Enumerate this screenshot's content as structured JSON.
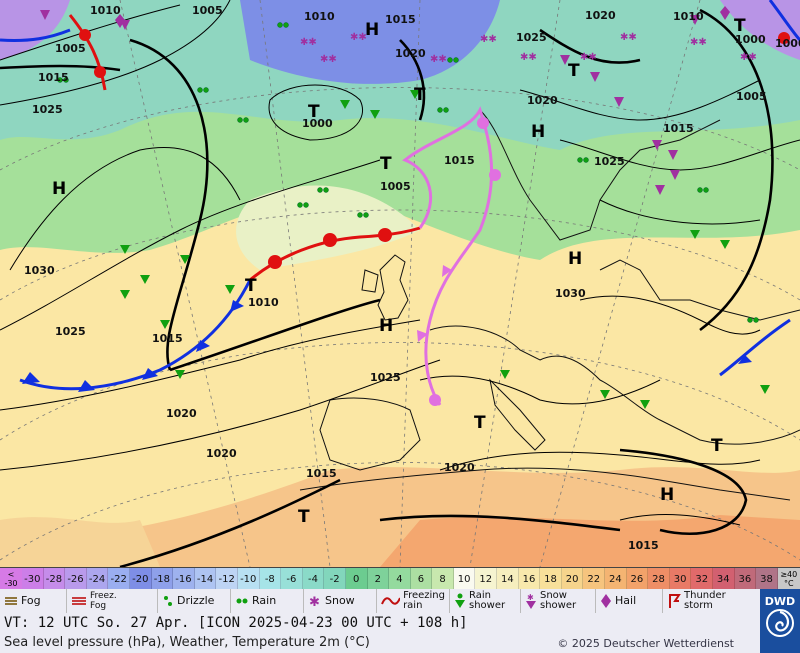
{
  "pressure_labels": [
    {
      "text": "1010"
    },
    {
      "text": "1005"
    },
    {
      "text": "1005"
    },
    {
      "text": "1015"
    },
    {
      "text": "1025"
    },
    {
      "text": "1010"
    },
    {
      "text": "1015"
    },
    {
      "text": "1020"
    },
    {
      "text": "1000"
    },
    {
      "text": "1005"
    },
    {
      "text": "1015"
    },
    {
      "text": "1030"
    },
    {
      "text": "1025"
    },
    {
      "text": "1015"
    },
    {
      "text": "1010"
    },
    {
      "text": "1025"
    },
    {
      "text": "1020"
    },
    {
      "text": "1020"
    },
    {
      "text": "1015"
    },
    {
      "text": "1020"
    },
    {
      "text": "1030"
    },
    {
      "text": "1025"
    },
    {
      "text": "1020"
    },
    {
      "text": "1010"
    },
    {
      "text": "1000"
    },
    {
      "text": "1020"
    },
    {
      "text": "1005"
    },
    {
      "text": "1015"
    },
    {
      "text": "1015"
    },
    {
      "text": "1025"
    },
    {
      "text": "1000"
    }
  ],
  "centers": [
    {
      "text": "H"
    },
    {
      "text": "T"
    },
    {
      "text": "T"
    },
    {
      "text": "H"
    },
    {
      "text": "T"
    },
    {
      "text": "H"
    },
    {
      "text": "H"
    },
    {
      "text": "T"
    },
    {
      "text": "T"
    },
    {
      "text": "T"
    },
    {
      "text": "H"
    },
    {
      "text": "T"
    },
    {
      "text": "H"
    },
    {
      "text": "T"
    },
    {
      "text": "T"
    }
  ],
  "colorbar": {
    "left_edge": [
      "<",
      "-30"
    ],
    "values": [
      "-30",
      "-28",
      "-26",
      "-24",
      "-22",
      "-20",
      "-18",
      "-16",
      "-14",
      "-12",
      "-10",
      "-8",
      "-6",
      "-4",
      "-2",
      "0",
      "2",
      "4",
      "6",
      "8",
      "10",
      "12",
      "14",
      "16",
      "18",
      "20",
      "22",
      "24",
      "26",
      "28",
      "30",
      "32",
      "34",
      "36",
      "38"
    ],
    "right_edge": [
      "≥40",
      "°C"
    ]
  },
  "legend": [
    {
      "label": "Fog",
      "icon": "fog-icon"
    },
    {
      "label": "Freez.\nFog",
      "icon": "freezing-fog-icon"
    },
    {
      "label": "Drizzle",
      "icon": "drizzle-icon"
    },
    {
      "label": "Rain",
      "icon": "rain-icon"
    },
    {
      "label": "Snow",
      "icon": "snow-icon"
    },
    {
      "label": "Freezing\nrain",
      "icon": "freezing-rain-icon"
    },
    {
      "label": "Rain\nshower",
      "icon": "rain-shower-icon"
    },
    {
      "label": "Snow\nshower",
      "icon": "snow-shower-icon"
    },
    {
      "label": "Hail",
      "icon": "hail-icon"
    },
    {
      "label": "Thunder\nstorm",
      "icon": "thunderstorm-icon"
    }
  ],
  "footer": {
    "vt": "VT: 12 UTC So.  27 Apr. [ICON 2025-04-23  00 UTC + 108 h]",
    "subtitle": "Sea level pressure (hPa), Weather, Temperature 2m (°C)",
    "copyright": "© 2025 Deutscher Wetterdienst",
    "logo": "DWD"
  },
  "colors": {
    "warm_front": "#e01010",
    "cold_front": "#1030e0",
    "occluded_front": "#e070e0",
    "isobar": "#000000",
    "rain_symbol": "#10a010",
    "snow_symbol": "#a030a0",
    "dwd_blue": "#1a4e9e"
  }
}
